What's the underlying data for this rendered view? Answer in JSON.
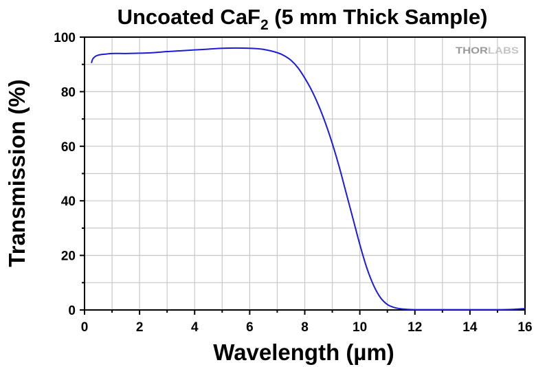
{
  "chart_data": {
    "type": "line",
    "title": "Uncoated CaF",
    "title_subscript": "2",
    "title_suffix": " (5 mm Thick Sample)",
    "xlabel": "Wavelength (µm)",
    "ylabel": "Transmission (%)",
    "xlim": [
      0,
      16
    ],
    "ylim": [
      0,
      100
    ],
    "xticks": [
      0,
      2,
      4,
      6,
      8,
      10,
      12,
      14,
      16
    ],
    "yticks": [
      0,
      20,
      40,
      60,
      80,
      100
    ],
    "grid": true,
    "logo": {
      "text_a": "THOR",
      "text_b": "LABS"
    },
    "colors": {
      "line": "#1a1adc",
      "grid": "#c8c8c8",
      "axis": "#000000"
    },
    "series": [
      {
        "x": [
          0.25,
          0.3,
          0.4,
          0.5,
          0.6,
          0.8,
          1.0,
          1.5,
          2.0,
          2.5,
          3.0,
          3.5,
          4.0,
          4.5,
          5.0,
          5.5,
          6.0,
          6.5,
          7.0,
          7.25,
          7.5,
          7.75,
          8.0,
          8.25,
          8.5,
          8.75,
          9.0,
          9.25,
          9.5,
          9.75,
          10.0,
          10.25,
          10.5,
          10.75,
          11.0,
          11.25,
          11.5,
          11.75,
          12.0,
          12.5,
          13.0,
          14.0,
          15.0,
          15.5,
          16.0
        ],
        "y": [
          90.5,
          92.0,
          93.0,
          93.4,
          93.6,
          93.8,
          94.0,
          94.0,
          94.1,
          94.3,
          94.7,
          95.0,
          95.3,
          95.6,
          95.9,
          96.0,
          95.9,
          95.5,
          94.3,
          93.2,
          91.5,
          88.8,
          85.0,
          80.5,
          75.0,
          68.5,
          61.0,
          52.5,
          43.0,
          33.5,
          24.0,
          15.5,
          9.0,
          4.5,
          2.0,
          0.9,
          0.4,
          0.2,
          0.1,
          0.1,
          0.1,
          0.1,
          0.1,
          0.2,
          0.5
        ]
      }
    ]
  }
}
